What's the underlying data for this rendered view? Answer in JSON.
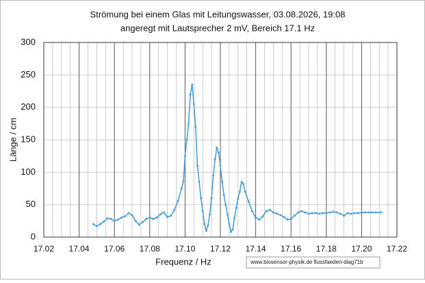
{
  "chart_data": {
    "type": "line",
    "title": "Strömung bei einem Glas mit  Leitungswasser, 03.08.2026, 19:08",
    "subtitle": "angeregt mit Lautsprecher 2 mV, Bereich 17.1 Hz",
    "x_label": "Frequenz / Hz",
    "y_label": "Länge / cm",
    "annotation": "www.biosensor-physik.de  flussfaeden-diag71b",
    "xlim": [
      17.02,
      17.22
    ],
    "xticks": [
      17.02,
      17.04,
      17.06,
      17.08,
      {
        "value": 17.1,
        "label": "17.10"
      },
      17.12,
      17.14,
      17.16,
      17.18,
      {
        "value": 17.2,
        "label": "17.20"
      },
      17.22
    ],
    "ylim": [
      0,
      300
    ],
    "yticks": [
      0,
      50,
      100,
      150,
      200,
      250,
      300
    ],
    "grid": true,
    "series": [
      {
        "color": "#4a9fd8",
        "x": [
          17.048,
          17.05,
          17.052,
          17.054,
          17.056,
          17.058,
          17.06,
          17.062,
          17.064,
          17.066,
          17.068,
          17.07,
          17.072,
          17.074,
          17.076,
          17.078,
          17.08,
          17.082,
          17.084,
          17.086,
          17.088,
          17.09,
          17.092,
          17.094,
          17.096,
          17.098,
          17.099,
          17.1,
          17.101,
          17.102,
          17.103,
          17.104,
          17.105,
          17.106,
          17.107,
          17.108,
          17.109,
          17.11,
          17.111,
          17.112,
          17.113,
          17.114,
          17.115,
          17.116,
          17.117,
          17.118,
          17.119,
          17.12,
          17.121,
          17.122,
          17.123,
          17.124,
          17.125,
          17.126,
          17.127,
          17.128,
          17.129,
          17.13,
          17.131,
          17.132,
          17.133,
          17.134,
          17.136,
          17.138,
          17.14,
          17.142,
          17.144,
          17.146,
          17.148,
          17.15,
          17.152,
          17.154,
          17.156,
          17.158,
          17.16,
          17.162,
          17.164,
          17.166,
          17.168,
          17.17,
          17.172,
          17.174,
          17.176,
          17.178,
          17.18,
          17.182,
          17.184,
          17.186,
          17.188,
          17.19,
          17.192,
          17.194,
          17.196,
          17.198,
          17.2,
          17.202,
          17.204,
          17.206,
          17.208,
          17.211
        ],
        "values": [
          20,
          17,
          20,
          24,
          29,
          28,
          25,
          27,
          30,
          32,
          37,
          34,
          25,
          19,
          23,
          28,
          30,
          28,
          30,
          35,
          38,
          31,
          33,
          42,
          56,
          75,
          85,
          125,
          150,
          175,
          220,
          235,
          205,
          170,
          110,
          85,
          60,
          40,
          20,
          10,
          18,
          35,
          60,
          95,
          120,
          138,
          130,
          110,
          85,
          65,
          50,
          35,
          20,
          8,
          12,
          30,
          45,
          60,
          70,
          85,
          82,
          70,
          55,
          40,
          30,
          27,
          32,
          40,
          42,
          38,
          36,
          34,
          31,
          27,
          28,
          33,
          38,
          40,
          38,
          36,
          37,
          37,
          36,
          37,
          37,
          38,
          39,
          38,
          36,
          33,
          37,
          36,
          37,
          37,
          38,
          38,
          38,
          38,
          38,
          38
        ]
      }
    ]
  }
}
